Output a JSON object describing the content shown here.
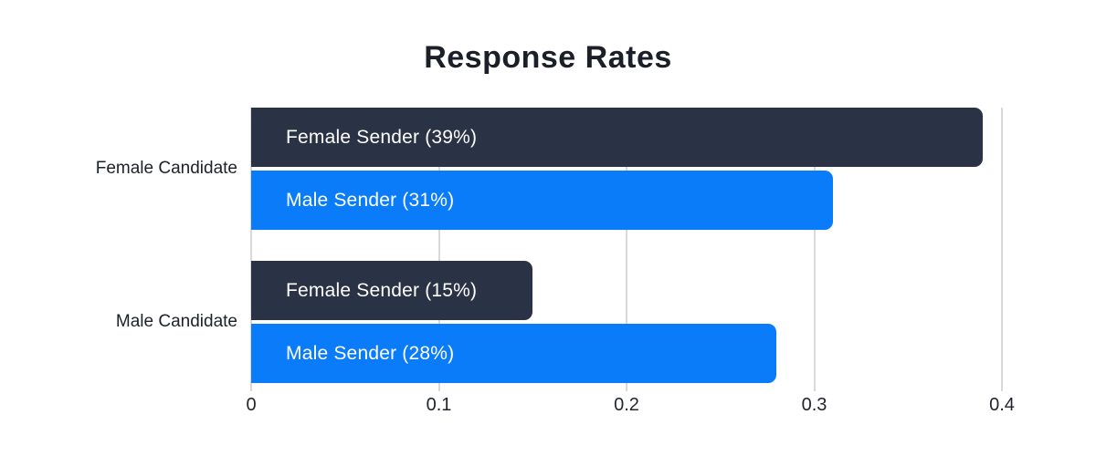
{
  "chart_data": {
    "type": "bar",
    "orientation": "horizontal",
    "title": "Response Rates",
    "categories": [
      "Female Candidate",
      "Male Candidate"
    ],
    "series": [
      {
        "name": "Female Sender",
        "color": "#2a3245",
        "values": [
          0.39,
          0.15
        ],
        "bar_labels": [
          "Female Sender (39%)",
          "Female Sender (15%)"
        ]
      },
      {
        "name": "Male Sender",
        "color": "#0a7cfa",
        "values": [
          0.31,
          0.28
        ],
        "bar_labels": [
          "Male Sender (31%)",
          "Male Sender (28%)"
        ]
      }
    ],
    "xlabel": "",
    "ylabel": "",
    "xlim": [
      0,
      0.4
    ],
    "xticks": [
      "0",
      "0.1",
      "0.2",
      "0.3",
      "0.4"
    ],
    "grid": true,
    "legend": "none",
    "colors": {
      "gridline": "#d9d9d9",
      "title_text": "#1b1f28",
      "axis_text": "#22252c",
      "bar_text": "#ffffff",
      "background": "#ffffff"
    }
  }
}
